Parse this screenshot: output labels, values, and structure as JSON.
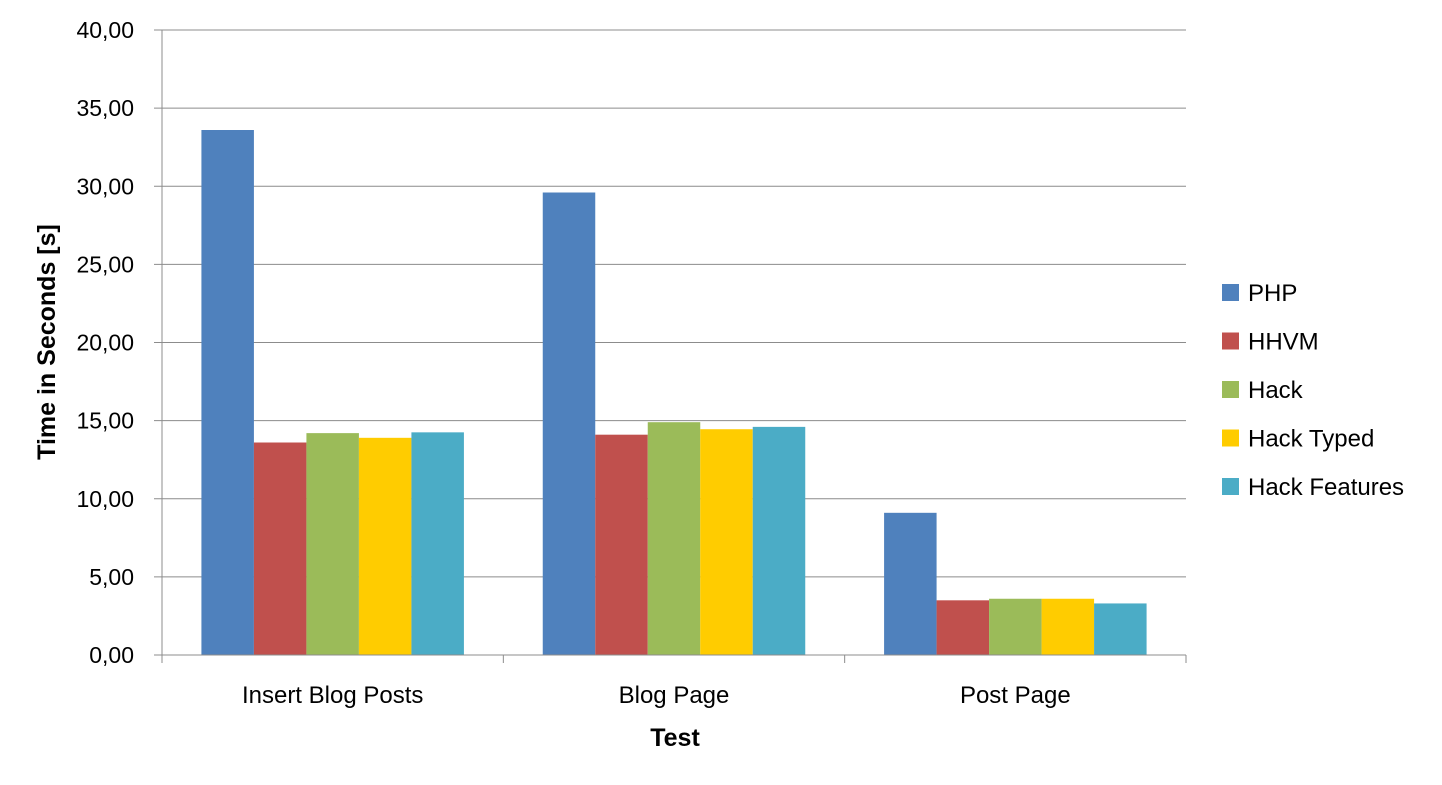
{
  "chart_data": {
    "type": "bar",
    "categories": [
      "Insert Blog Posts",
      "Blog Page",
      "Post Page"
    ],
    "series": [
      {
        "name": "PHP",
        "color": "#4F81BD",
        "values": [
          33.6,
          29.6,
          9.1
        ]
      },
      {
        "name": "HHVM",
        "color": "#C0504D",
        "values": [
          13.6,
          14.1,
          3.5
        ]
      },
      {
        "name": "Hack",
        "color": "#9BBB59",
        "values": [
          14.2,
          14.9,
          3.6
        ]
      },
      {
        "name": "Hack Typed",
        "color": "#FFCC00",
        "values": [
          13.9,
          14.45,
          3.6
        ]
      },
      {
        "name": "Hack Features",
        "color": "#4BACC6",
        "values": [
          14.25,
          14.6,
          3.3
        ]
      }
    ],
    "xlabel": "Test",
    "ylabel": "Time in Seconds [s]",
    "ylim": [
      0,
      40
    ],
    "yticks": [
      "0,00",
      "5,00",
      "10,00",
      "15,00",
      "20,00",
      "25,00",
      "30,00",
      "35,00",
      "40,00"
    ],
    "grid": true,
    "legend_position": "right"
  }
}
